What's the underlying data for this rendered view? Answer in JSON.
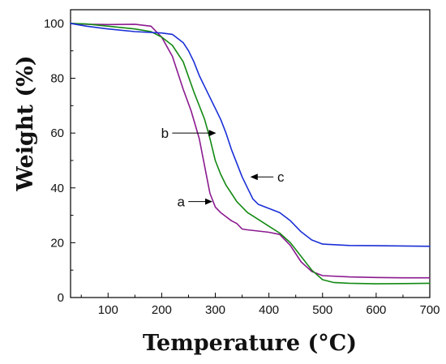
{
  "chart_data": {
    "type": "line",
    "title": "",
    "xlabel": "Temperature (°C)",
    "ylabel": "Weight (%)",
    "xlim": [
      30,
      700
    ],
    "ylim": [
      0,
      105
    ],
    "x_ticks": [
      100,
      200,
      300,
      400,
      500,
      600,
      700
    ],
    "y_ticks": [
      0,
      20,
      40,
      60,
      80,
      100
    ],
    "grid": false,
    "series": [
      {
        "color": "#8b1a8f",
        "x": [
          30,
          60,
          100,
          150,
          180,
          200,
          220,
          240,
          255,
          270,
          280,
          290,
          300,
          310,
          320,
          330,
          340,
          350,
          360,
          400,
          420,
          440,
          460,
          480,
          500,
          550,
          600,
          650,
          700
        ],
        "values": [
          100,
          99.7,
          99.6,
          99.7,
          99,
          95,
          88,
          76,
          68,
          58,
          48,
          38,
          33,
          31,
          29.5,
          28,
          27,
          25,
          24.7,
          23.8,
          23,
          19,
          13,
          9.5,
          8,
          7.5,
          7.3,
          7.2,
          7.2
        ]
      },
      {
        "color": "#138a13",
        "x": [
          30,
          60,
          100,
          150,
          180,
          200,
          220,
          240,
          260,
          280,
          290,
          300,
          310,
          320,
          330,
          340,
          350,
          360,
          380,
          400,
          420,
          440,
          460,
          480,
          500,
          520,
          550,
          600,
          650,
          700
        ],
        "values": [
          100,
          99.8,
          99,
          98,
          97,
          95,
          92,
          86,
          75,
          65,
          58,
          50,
          45,
          41,
          38,
          35,
          33,
          31,
          28.5,
          26,
          23.5,
          20,
          15,
          10,
          6.5,
          5.5,
          5.2,
          5,
          5.1,
          5.2
        ]
      },
      {
        "color": "#1a2fd6",
        "x": [
          30,
          60,
          100,
          150,
          200,
          220,
          240,
          250,
          260,
          270,
          280,
          290,
          300,
          310,
          320,
          330,
          340,
          350,
          360,
          370,
          380,
          400,
          420,
          440,
          460,
          480,
          500,
          550,
          600,
          650,
          700
        ],
        "values": [
          100,
          99,
          98,
          97,
          96.5,
          96,
          93,
          90,
          86,
          81,
          77,
          73,
          69,
          65,
          60,
          54,
          49,
          44,
          40,
          36,
          34,
          32.5,
          31,
          28,
          24,
          21,
          19.5,
          19,
          18.9,
          18.8,
          18.7
        ]
      }
    ],
    "annotations": [
      {
        "label": "a",
        "x_text": 236,
        "y_text": 35,
        "x_tip": 293,
        "y_tip": 35
      },
      {
        "label": "b",
        "x_text": 206,
        "y_text": 60,
        "x_tip": 300,
        "y_tip": 60
      },
      {
        "label": "c",
        "x_text": 422,
        "y_text": 44,
        "x_tip": 367,
        "y_tip": 44
      }
    ]
  }
}
